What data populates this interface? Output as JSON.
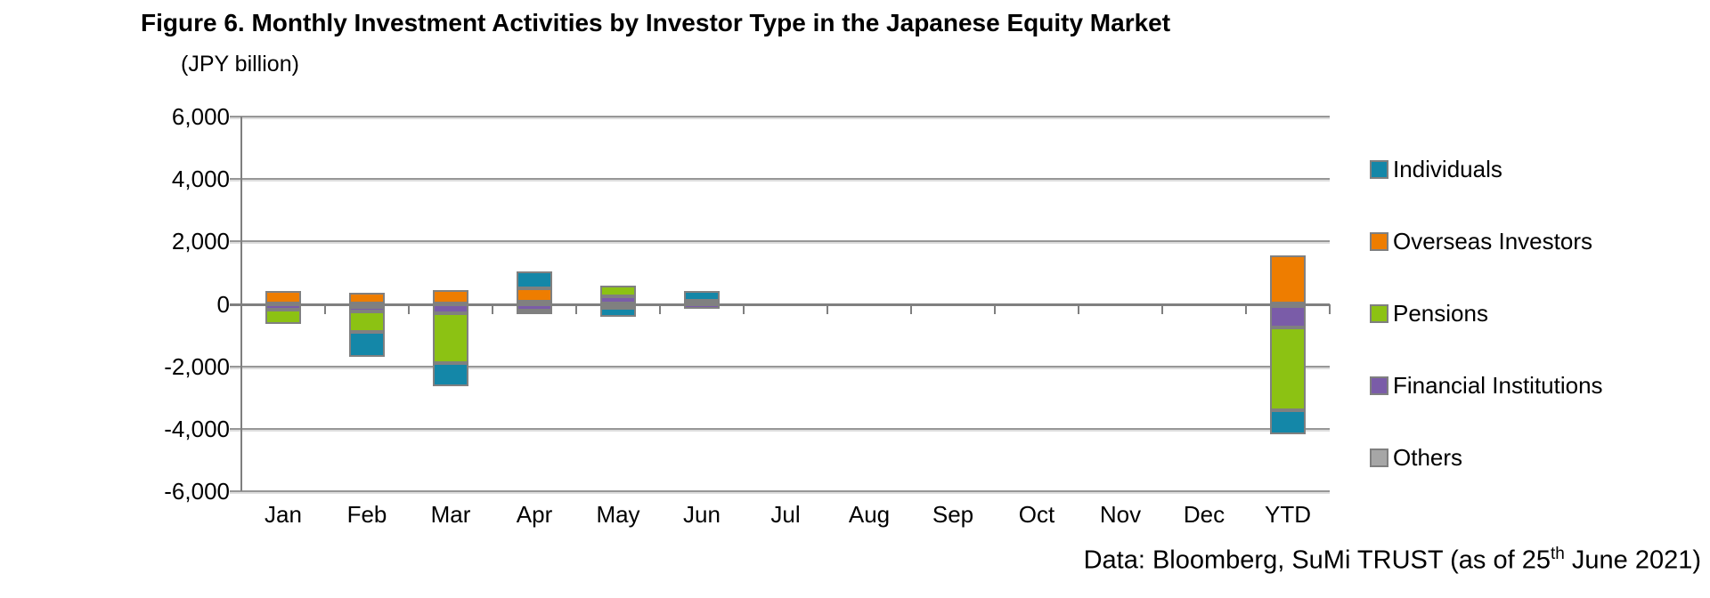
{
  "header": {
    "title": "Figure 6. Monthly Investment Activities by Investor Type in the Japanese Equity Market",
    "unit_label": "(JPY billion)"
  },
  "footer": {
    "prefix": "Data: Bloomberg, SuMi TRUST (as of 25",
    "superscript": "th",
    "suffix": " June 2021)"
  },
  "chart_data": {
    "type": "bar",
    "stacked": true,
    "title": "Figure 6. Monthly Investment Activities by Investor Type in the Japanese Equity Market",
    "ylabel": "(JPY billion)",
    "xlabel": "",
    "categories": [
      "Jan",
      "Feb",
      "Mar",
      "Apr",
      "May",
      "Jun",
      "Jul",
      "Aug",
      "Sep",
      "Oct",
      "Nov",
      "Dec",
      "YTD"
    ],
    "series": [
      {
        "name": "Individuals",
        "color": "#1487A8",
        "values": [
          0,
          -800,
          -750,
          550,
          -290,
          300,
          0,
          0,
          0,
          0,
          0,
          0,
          -780
        ]
      },
      {
        "name": "Overseas Investors",
        "color": "#EE7D00",
        "values": [
          400,
          350,
          450,
          430,
          0,
          0,
          0,
          0,
          0,
          0,
          0,
          0,
          1550
        ]
      },
      {
        "name": "Pensions",
        "color": "#8CC213",
        "values": [
          -470,
          -650,
          -1600,
          -130,
          350,
          0,
          0,
          0,
          0,
          0,
          0,
          0,
          -2650
        ]
      },
      {
        "name": "Financial Institutions",
        "color": "#7A5CA8",
        "values": [
          -180,
          -150,
          -300,
          -200,
          230,
          -170,
          0,
          0,
          0,
          0,
          0,
          0,
          -700
        ]
      },
      {
        "name": "Others",
        "color": "#A6A6A6",
        "values": [
          0,
          -100,
          0,
          70,
          -120,
          100,
          0,
          0,
          0,
          0,
          0,
          0,
          -60
        ]
      }
    ],
    "stack_order": "reverse_of_legend",
    "y_axis": {
      "min": -6000,
      "max": 6000,
      "tick_step": 2000,
      "tick_labels": [
        "6,000",
        "4,000",
        "2,000",
        "0",
        "-2,000",
        "-4,000",
        "-6,000"
      ]
    },
    "legend": {
      "position": "right"
    },
    "grid": true,
    "colors": {
      "gridline": "#979797",
      "axis": "#7f7f7f",
      "bar_border": "#808080",
      "text": "#000000"
    }
  }
}
